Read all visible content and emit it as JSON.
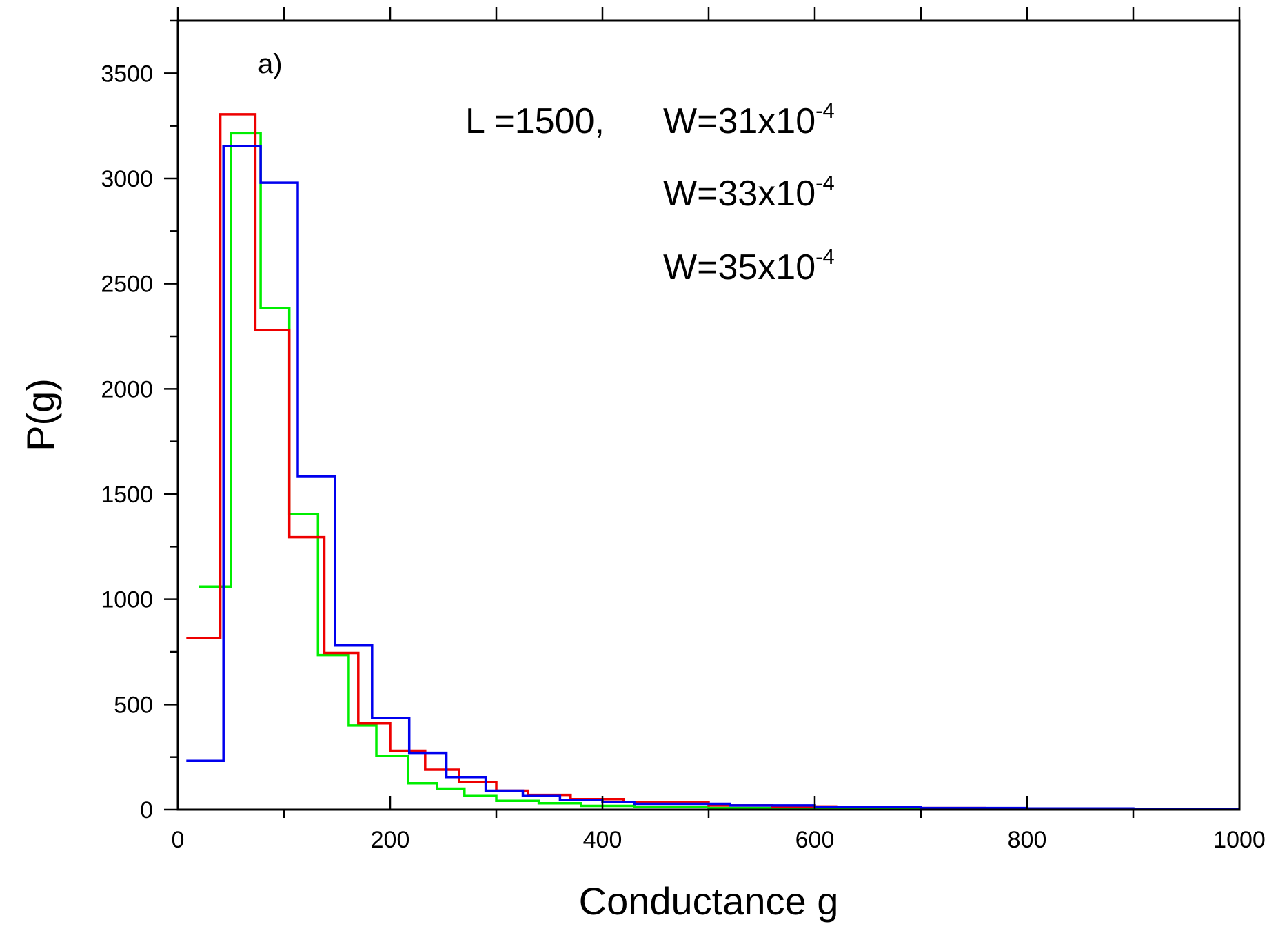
{
  "chart_data": {
    "type": "line",
    "style": "step histogram",
    "panel_label": "a)",
    "xlabel": "Conductance g",
    "ylabel": "P(g)",
    "xlim": [
      0,
      1000
    ],
    "ylim": [
      0,
      3750
    ],
    "x_ticks": [
      0,
      200,
      400,
      600,
      800,
      1000
    ],
    "y_ticks": [
      0,
      500,
      1000,
      1500,
      2000,
      2500,
      3000,
      3500
    ],
    "x_tick_labels": [
      "0",
      "200",
      "400",
      "600",
      "800",
      "1000"
    ],
    "y_tick_labels": [
      "0",
      "500",
      "1000",
      "1500",
      "2000",
      "2500",
      "3000",
      "3500"
    ],
    "grid": false,
    "annotation": {
      "prefix": "L =1500,",
      "lines": [
        {
          "text": "W=31x10",
          "sup": "-4"
        },
        {
          "text": "W=33x10",
          "sup": "-4"
        },
        {
          "text": "W=35x10",
          "sup": "-4"
        }
      ]
    },
    "series": [
      {
        "color": "#00ee00",
        "edges": [
          20,
          50,
          78,
          105,
          132,
          161,
          187,
          217,
          244,
          270,
          300,
          340,
          380,
          430,
          500,
          560,
          640,
          720,
          800
        ],
        "values": [
          1060,
          3215,
          2385,
          1405,
          735,
          400,
          255,
          125,
          100,
          65,
          42,
          30,
          18,
          12,
          8,
          6,
          4,
          2
        ]
      },
      {
        "color": "#ee0000",
        "edges": [
          8,
          40,
          73,
          105,
          138,
          170,
          200,
          233,
          265,
          300,
          330,
          370,
          420,
          500,
          560,
          620,
          700,
          760,
          845
        ],
        "values": [
          815,
          3305,
          2280,
          1295,
          745,
          410,
          280,
          190,
          130,
          90,
          70,
          50,
          35,
          20,
          15,
          12,
          8,
          5
        ]
      },
      {
        "color": "#0000ee",
        "edges": [
          8,
          43,
          78,
          113,
          148,
          183,
          218,
          253,
          290,
          325,
          360,
          400,
          430,
          520,
          600,
          700,
          800,
          900,
          1000
        ],
        "values": [
          232,
          3155,
          2980,
          1585,
          780,
          435,
          270,
          155,
          90,
          65,
          45,
          35,
          28,
          20,
          12,
          8,
          6,
          4
        ]
      }
    ]
  }
}
